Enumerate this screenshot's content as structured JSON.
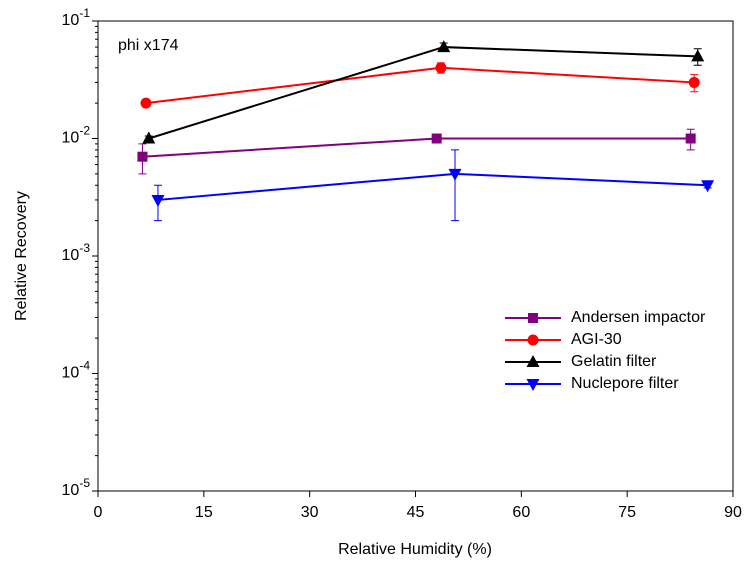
{
  "chart_data": {
    "type": "line",
    "annotation": "phi x174",
    "x_label": "Relative Humidity (%)",
    "y_label": "Relative Recovery",
    "log_y": true,
    "legend": "lower right",
    "xlim": [
      0,
      90
    ],
    "xticks": [
      0,
      15,
      30,
      45,
      60,
      75,
      90
    ],
    "ylim": [
      1e-05,
      0.1
    ],
    "yticks": [
      {
        "value": 1e-05,
        "label": "10",
        "exponent": "-5"
      },
      {
        "value": 0.0001,
        "label": "10",
        "exponent": "-4"
      },
      {
        "value": 0.001,
        "label": "10",
        "exponent": "-3"
      },
      {
        "value": 0.01,
        "label": "10",
        "exponent": "-2"
      },
      {
        "value": 0.1,
        "label": "10",
        "exponent": "-1"
      }
    ],
    "series": [
      {
        "name": "Andersen impactor",
        "color": "#800080",
        "marker": "square",
        "x": [
          6.3,
          48.0,
          84.0
        ],
        "values": [
          0.007,
          0.01,
          0.01
        ],
        "errors_minus": [
          0.002,
          0.0005,
          0.002
        ],
        "errors_plus": [
          0.002,
          0.0005,
          0.002
        ]
      },
      {
        "name": "AGI-30",
        "color": "#ff0000",
        "marker": "circle",
        "x": [
          6.8,
          48.6,
          84.5
        ],
        "values": [
          0.02,
          0.04,
          0.03
        ],
        "errors_minus": [
          0.001,
          0.004,
          0.005
        ],
        "errors_plus": [
          0.001,
          0.004,
          0.005
        ]
      },
      {
        "name": "Gelatin filter",
        "color": "#000000",
        "marker": "triangle-up",
        "x": [
          7.2,
          49.0,
          85.0
        ],
        "values": [
          0.01,
          0.06,
          0.05
        ],
        "errors_minus": [
          0.0005,
          0.005,
          0.008
        ],
        "errors_plus": [
          0.0005,
          0.005,
          0.008
        ]
      },
      {
        "name": "Nuclepore filter",
        "color": "#0000ff",
        "marker": "triangle-down",
        "x": [
          8.5,
          50.6,
          86.4
        ],
        "values": [
          0.003,
          0.005,
          0.004
        ],
        "errors_minus": [
          0.001,
          0.003,
          0.0002
        ],
        "errors_plus": [
          0.001,
          0.003,
          0.0002
        ]
      }
    ]
  }
}
